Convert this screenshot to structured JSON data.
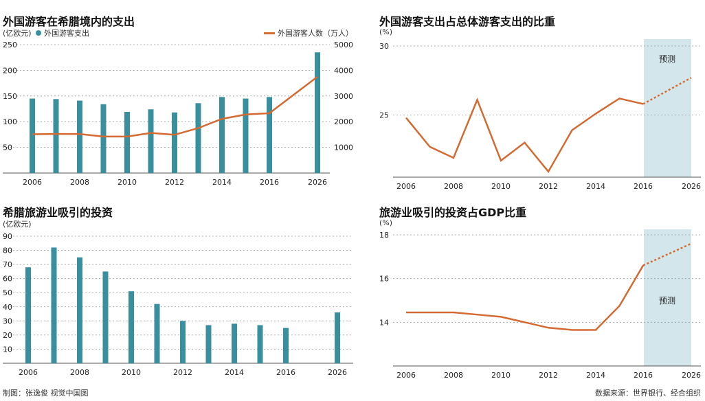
{
  "colors": {
    "bar": "#3a8f9e",
    "line": "#d46a32",
    "forecast_band": "#d3e6ec",
    "grid": "#999999"
  },
  "chart_data": [
    {
      "type": "bar",
      "title": "外国游客在希腊境内的支出",
      "ylabel": "(亿欧元)",
      "series_bar_name": "外国游客支出",
      "series_line_name": "外国游客人数（万人）",
      "categories": [
        "2006",
        "2007",
        "2008",
        "2009",
        "2010",
        "2011",
        "2012",
        "2013",
        "2014",
        "2015",
        "2016",
        "2026"
      ],
      "xticks": [
        "2006",
        "2008",
        "2010",
        "2012",
        "2014",
        "2016",
        "2026"
      ],
      "y_ticks": [
        50,
        100,
        150,
        200,
        250
      ],
      "y2_ticks": [
        1000,
        2000,
        3000,
        4000,
        5000
      ],
      "ylim": [
        0,
        250
      ],
      "y2lim": [
        0,
        5000
      ],
      "series": [
        {
          "name": "外国游客支出",
          "values": [
            145,
            144,
            141,
            134,
            119,
            124,
            118,
            136,
            148,
            145,
            148,
            235
          ]
        },
        {
          "name": "外国游客人数（万人）",
          "values": [
            1510,
            1520,
            1520,
            1420,
            1420,
            1560,
            1490,
            1750,
            2110,
            2280,
            2330,
            3750
          ]
        }
      ]
    },
    {
      "type": "line",
      "title": "外国游客支出占总体游客支出的比重",
      "ylabel": "(%)",
      "annotation": "预测",
      "categories": [
        "2006",
        "2007",
        "2008",
        "2009",
        "2010",
        "2011",
        "2012",
        "2013",
        "2014",
        "2015",
        "2016",
        "2026"
      ],
      "xticks": [
        "2006",
        "2008",
        "2010",
        "2012",
        "2014",
        "2016",
        "2026"
      ],
      "y_ticks": [
        25,
        30
      ],
      "ylim": [
        20.5,
        30
      ],
      "values": [
        24.8,
        22.7,
        21.9,
        26.1,
        21.7,
        23.0,
        20.9,
        23.9,
        25.1,
        26.2,
        25.8,
        27.7
      ],
      "forecast_from": "2016"
    },
    {
      "type": "bar",
      "title": "希腊旅游业吸引的投资",
      "ylabel": "(亿欧元)",
      "categories": [
        "2006",
        "2007",
        "2008",
        "2009",
        "2010",
        "2011",
        "2012",
        "2013",
        "2014",
        "2015",
        "2016",
        "2026"
      ],
      "xticks": [
        "2006",
        "2008",
        "2010",
        "2012",
        "2014",
        "2016",
        "2026"
      ],
      "y_ticks": [
        10,
        20,
        30,
        40,
        50,
        60,
        70,
        80,
        90
      ],
      "ylim": [
        0,
        90
      ],
      "values": [
        68,
        82,
        75,
        65,
        51,
        42,
        30,
        27,
        28,
        27,
        25,
        36
      ]
    },
    {
      "type": "line",
      "title": "旅游业吸引的投资占GDP比重",
      "ylabel": "(%)",
      "annotation": "预测",
      "categories": [
        "2006",
        "2007",
        "2008",
        "2009",
        "2010",
        "2011",
        "2012",
        "2013",
        "2014",
        "2015",
        "2016",
        "2026"
      ],
      "xticks": [
        "2006",
        "2008",
        "2010",
        "2012",
        "2014",
        "2016",
        "2026"
      ],
      "y_ticks": [
        14,
        16,
        18
      ],
      "ylim": [
        12,
        18
      ],
      "values": [
        14.45,
        14.45,
        14.45,
        14.35,
        14.25,
        14.0,
        13.75,
        13.65,
        13.65,
        14.75,
        16.6,
        17.6
      ],
      "forecast_from": "2016"
    }
  ],
  "footer": {
    "left": "制图：张逸俊  视觉中国图",
    "right": "数据来源：世界银行、经合组织"
  }
}
